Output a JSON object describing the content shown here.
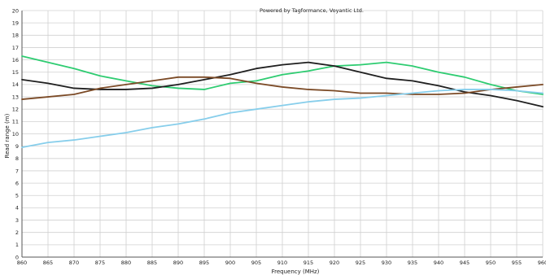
{
  "credit": "Powered by Tagformance, Voyantic Ltd.",
  "chart_data": {
    "type": "line",
    "title": "",
    "xlabel": "Frequency (MHz)",
    "ylabel": "Read range (m)",
    "xlim": [
      860,
      960
    ],
    "ylim": [
      0,
      20
    ],
    "x_ticks": [
      860,
      865,
      870,
      875,
      880,
      885,
      890,
      895,
      900,
      905,
      910,
      915,
      920,
      925,
      930,
      935,
      940,
      945,
      950,
      955,
      960
    ],
    "y_ticks": [
      0,
      1,
      2,
      3,
      4,
      5,
      6,
      7,
      8,
      9,
      10,
      11,
      12,
      13,
      14,
      15,
      16,
      17,
      18,
      19,
      20
    ],
    "grid": true,
    "legend": "none",
    "x": [
      860,
      865,
      870,
      875,
      880,
      885,
      890,
      895,
      900,
      905,
      910,
      915,
      920,
      925,
      930,
      935,
      940,
      945,
      950,
      955,
      960
    ],
    "series": [
      {
        "color": "#2ecc71",
        "values": [
          16.3,
          15.8,
          15.3,
          14.7,
          14.3,
          13.9,
          13.7,
          13.6,
          14.1,
          14.3,
          14.8,
          15.1,
          15.5,
          15.6,
          15.8,
          15.5,
          15.0,
          14.6,
          14.0,
          13.5,
          13.2
        ]
      },
      {
        "color": "#1f1f1f",
        "values": [
          14.4,
          14.1,
          13.7,
          13.6,
          13.6,
          13.7,
          14.0,
          14.4,
          14.8,
          15.3,
          15.6,
          15.8,
          15.5,
          15.0,
          14.5,
          14.3,
          13.9,
          13.4,
          13.1,
          12.7,
          12.2
        ]
      },
      {
        "color": "#7b4a26",
        "values": [
          12.8,
          13.0,
          13.2,
          13.7,
          14.0,
          14.3,
          14.6,
          14.6,
          14.5,
          14.1,
          13.8,
          13.6,
          13.5,
          13.3,
          13.3,
          13.2,
          13.2,
          13.3,
          13.6,
          13.8,
          14.0
        ]
      },
      {
        "color": "#87ceeb",
        "values": [
          8.9,
          9.3,
          9.5,
          9.8,
          10.1,
          10.5,
          10.8,
          11.2,
          11.7,
          12.0,
          12.3,
          12.6,
          12.8,
          12.9,
          13.1,
          13.3,
          13.5,
          13.6,
          13.6,
          13.5,
          13.3
        ]
      }
    ]
  }
}
